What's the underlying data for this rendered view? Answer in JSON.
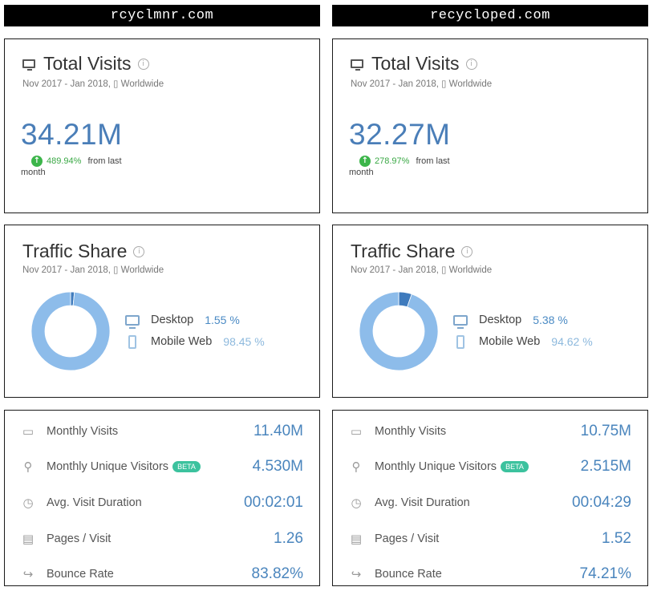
{
  "left": {
    "domain": "rcyclmnr.com",
    "visits": {
      "title": "Total Visits",
      "subtitle": "Nov 2017 - Jan 2018, ▯ Worldwide",
      "value": "34.21M",
      "change_pct": "489.94%",
      "change_text": "from last",
      "change_text2": "month"
    },
    "traffic": {
      "title": "Traffic Share",
      "subtitle": "Nov 2017 - Jan 2018, ▯ Worldwide",
      "desktop_label": "Desktop",
      "desktop_value": "1.55 %",
      "mobile_label": "Mobile Web",
      "mobile_value": "98.45 %",
      "desktop_share": 1.55,
      "mobile_share": 98.45
    },
    "stats": [
      {
        "label": "Monthly Visits",
        "value": "11.40M",
        "icon": "monitor-icon"
      },
      {
        "label": "Monthly Unique Visitors",
        "value": "4.530M",
        "icon": "user-icon",
        "badge": "BETA"
      },
      {
        "label": "Avg. Visit Duration",
        "value": "00:02:01",
        "icon": "stopwatch-icon"
      },
      {
        "label": "Pages / Visit",
        "value": "1.26",
        "icon": "pages-icon"
      },
      {
        "label": "Bounce Rate",
        "value": "83.82%",
        "icon": "bounce-arrow-icon"
      }
    ]
  },
  "right": {
    "domain": "recycloped.com",
    "visits": {
      "title": "Total Visits",
      "subtitle": "Nov 2017 - Jan 2018, ▯ Worldwide",
      "value": "32.27M",
      "change_pct": "278.97%",
      "change_text": "from last",
      "change_text2": "month"
    },
    "traffic": {
      "title": "Traffic Share",
      "subtitle": "Nov 2017 - Jan 2018, ▯ Worldwide",
      "desktop_label": "Desktop",
      "desktop_value": "5.38 %",
      "mobile_label": "Mobile Web",
      "mobile_value": "94.62 %",
      "desktop_share": 5.38,
      "mobile_share": 94.62
    },
    "stats": [
      {
        "label": "Monthly Visits",
        "value": "10.75M",
        "icon": "monitor-icon"
      },
      {
        "label": "Monthly Unique Visitors",
        "value": "2.515M",
        "icon": "user-icon",
        "badge": "BETA"
      },
      {
        "label": "Avg. Visit Duration",
        "value": "00:04:29",
        "icon": "stopwatch-icon"
      },
      {
        "label": "Pages / Visit",
        "value": "1.52",
        "icon": "pages-icon"
      },
      {
        "label": "Bounce Rate",
        "value": "74.21%",
        "icon": "bounce-arrow-icon"
      }
    ]
  },
  "colors": {
    "desktop": "#3f7bbd",
    "mobile": "#8dbcea",
    "value_blue": "#4a7eb8",
    "positive_green": "#3cb54a",
    "beta_badge": "#3cc29e"
  }
}
